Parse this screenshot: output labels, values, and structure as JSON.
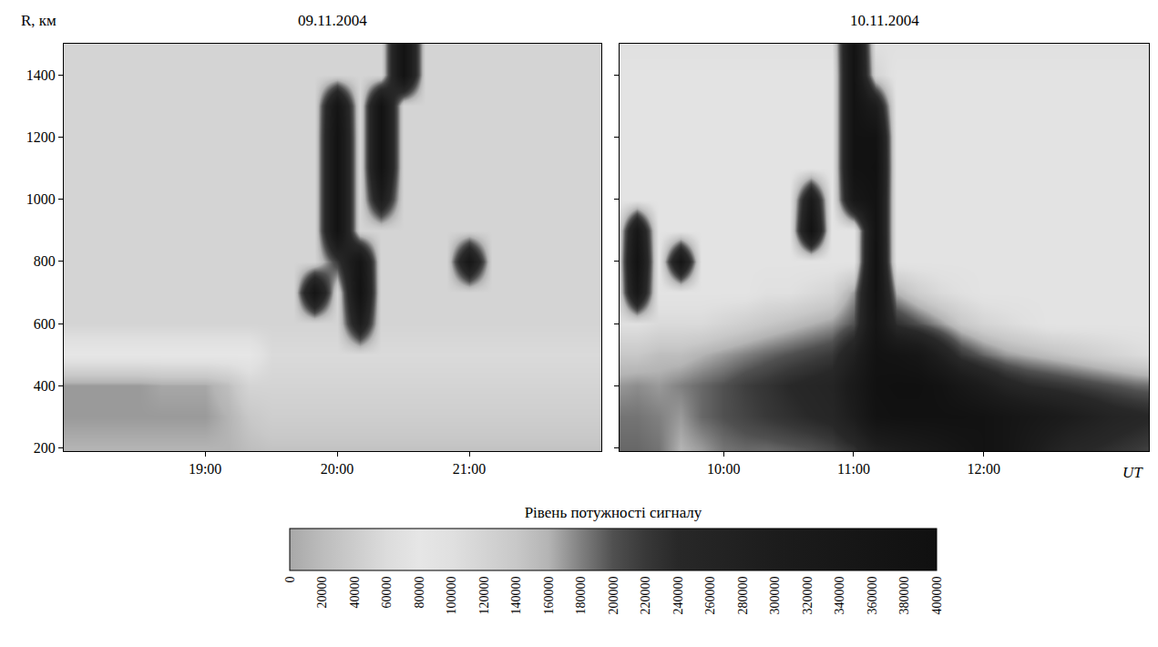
{
  "chart_data": [
    {
      "type": "heatmap",
      "title": "09.11.2004",
      "ylabel": "R, км",
      "x": [
        18,
        18.17,
        18.33,
        18.5,
        18.67,
        18.83,
        19,
        19.17,
        19.33,
        19.5,
        19.67,
        19.83,
        20,
        20.17,
        20.33,
        20.5,
        20.67,
        20.83,
        21,
        21.17,
        21.33,
        21.5,
        21.67,
        21.83,
        22
      ],
      "y": [
        200,
        300,
        400,
        500,
        600,
        700,
        800,
        900,
        1000,
        1100,
        1200,
        1300,
        1400,
        1500
      ],
      "z": [
        [
          160000,
          160000,
          160000,
          160000,
          160000,
          160000,
          160000,
          160000,
          150000,
          145000,
          145000,
          145000,
          145000,
          145000,
          145000,
          145000,
          145000,
          145000,
          145000,
          145000,
          145000,
          145000,
          145000,
          145000,
          145000
        ],
        [
          170000,
          170000,
          170000,
          170000,
          170000,
          170000,
          170000,
          160000,
          140000,
          130000,
          130000,
          130000,
          130000,
          130000,
          130000,
          130000,
          130000,
          130000,
          130000,
          130000,
          130000,
          130000,
          130000,
          130000,
          130000
        ],
        [
          170000,
          170000,
          170000,
          170000,
          165000,
          165000,
          165000,
          150000,
          120000,
          120000,
          120000,
          120000,
          120000,
          120000,
          120000,
          120000,
          120000,
          120000,
          120000,
          120000,
          120000,
          120000,
          120000,
          120000,
          120000
        ],
        [
          80000,
          80000,
          80000,
          80000,
          80000,
          80000,
          80000,
          80000,
          80000,
          110000,
          110000,
          110000,
          110000,
          110000,
          110000,
          110000,
          110000,
          110000,
          110000,
          110000,
          110000,
          110000,
          110000,
          110000,
          110000
        ],
        [
          120000,
          120000,
          120000,
          120000,
          120000,
          120000,
          120000,
          120000,
          120000,
          120000,
          120000,
          120000,
          120000,
          300000,
          120000,
          120000,
          120000,
          120000,
          120000,
          120000,
          120000,
          120000,
          120000,
          120000,
          120000
        ],
        [
          120000,
          120000,
          120000,
          120000,
          120000,
          120000,
          120000,
          120000,
          120000,
          120000,
          120000,
          360000,
          120000,
          380000,
          120000,
          120000,
          120000,
          120000,
          120000,
          120000,
          120000,
          120000,
          120000,
          120000,
          120000
        ],
        [
          120000,
          120000,
          120000,
          120000,
          120000,
          120000,
          120000,
          120000,
          120000,
          120000,
          120000,
          120000,
          220000,
          360000,
          120000,
          120000,
          120000,
          120000,
          340000,
          120000,
          120000,
          120000,
          120000,
          120000,
          120000
        ],
        [
          120000,
          120000,
          120000,
          120000,
          120000,
          120000,
          120000,
          120000,
          120000,
          120000,
          120000,
          120000,
          380000,
          120000,
          120000,
          120000,
          120000,
          120000,
          120000,
          120000,
          120000,
          120000,
          120000,
          120000,
          120000
        ],
        [
          120000,
          120000,
          120000,
          120000,
          120000,
          120000,
          120000,
          120000,
          120000,
          120000,
          120000,
          120000,
          380000,
          120000,
          300000,
          120000,
          120000,
          120000,
          120000,
          120000,
          120000,
          120000,
          120000,
          120000,
          120000
        ],
        [
          120000,
          120000,
          120000,
          120000,
          120000,
          120000,
          120000,
          120000,
          120000,
          120000,
          120000,
          120000,
          380000,
          120000,
          380000,
          120000,
          120000,
          120000,
          120000,
          120000,
          120000,
          120000,
          120000,
          120000,
          120000
        ],
        [
          120000,
          120000,
          120000,
          120000,
          120000,
          120000,
          120000,
          120000,
          120000,
          120000,
          120000,
          120000,
          380000,
          120000,
          380000,
          120000,
          120000,
          120000,
          120000,
          120000,
          120000,
          120000,
          120000,
          120000,
          120000
        ],
        [
          120000,
          120000,
          120000,
          120000,
          120000,
          120000,
          120000,
          120000,
          120000,
          120000,
          120000,
          120000,
          360000,
          120000,
          380000,
          120000,
          120000,
          120000,
          120000,
          120000,
          120000,
          120000,
          120000,
          120000,
          120000
        ],
        [
          120000,
          120000,
          120000,
          120000,
          120000,
          120000,
          120000,
          120000,
          120000,
          120000,
          120000,
          120000,
          120000,
          120000,
          120000,
          380000,
          120000,
          120000,
          120000,
          120000,
          120000,
          120000,
          120000,
          120000,
          120000
        ],
        [
          120000,
          120000,
          120000,
          120000,
          120000,
          120000,
          120000,
          120000,
          120000,
          120000,
          120000,
          120000,
          120000,
          120000,
          120000,
          380000,
          120000,
          120000,
          120000,
          120000,
          120000,
          120000,
          120000,
          120000,
          120000
        ]
      ],
      "xlim": [
        17.93,
        22.0
      ],
      "ylim": [
        190,
        1500
      ],
      "xticks": [
        {
          "value": 19,
          "label": "19:00"
        },
        {
          "value": 20,
          "label": "20:00"
        },
        {
          "value": 21,
          "label": "21:00"
        }
      ],
      "yticks": [
        200,
        400,
        600,
        800,
        1000,
        1200,
        1400
      ],
      "grid": false
    },
    {
      "type": "heatmap",
      "title": "10.11.2004",
      "xlabel": "UT",
      "x": [
        9.17,
        9.33,
        9.5,
        9.67,
        9.83,
        10,
        10.17,
        10.33,
        10.5,
        10.67,
        10.83,
        11,
        11.17,
        11.33,
        11.5,
        11.67,
        11.83,
        12,
        12.17,
        12.33,
        12.5,
        12.67,
        12.83,
        13,
        13.17,
        13.33
      ],
      "y": [
        200,
        300,
        400,
        500,
        600,
        700,
        800,
        900,
        1000,
        1100,
        1200,
        1300,
        1400,
        1500
      ],
      "z": [
        [
          190000,
          190000,
          185000,
          160000,
          170000,
          185000,
          190000,
          190000,
          195000,
          200000,
          210000,
          230000,
          280000,
          300000,
          320000,
          340000,
          360000,
          380000,
          360000,
          320000,
          280000,
          250000,
          240000,
          230000,
          220000,
          210000
        ],
        [
          185000,
          185000,
          180000,
          170000,
          190000,
          200000,
          210000,
          220000,
          230000,
          240000,
          250000,
          300000,
          380000,
          390000,
          390000,
          390000,
          390000,
          380000,
          360000,
          340000,
          320000,
          300000,
          280000,
          260000,
          250000,
          240000
        ],
        [
          170000,
          175000,
          170000,
          180000,
          190000,
          200000,
          215000,
          225000,
          240000,
          250000,
          260000,
          320000,
          390000,
          400000,
          400000,
          380000,
          340000,
          300000,
          260000,
          240000,
          230000,
          220000,
          210000,
          200000,
          190000,
          185000
        ],
        [
          140000,
          140000,
          150000,
          150000,
          160000,
          170000,
          180000,
          190000,
          200000,
          210000,
          220000,
          280000,
          380000,
          370000,
          350000,
          280000,
          220000,
          190000,
          170000,
          160000,
          150000,
          140000,
          130000,
          120000,
          110000,
          100000
        ],
        [
          100000,
          100000,
          110000,
          110000,
          110000,
          120000,
          130000,
          140000,
          150000,
          160000,
          170000,
          200000,
          360000,
          230000,
          200000,
          170000,
          140000,
          120000,
          110000,
          100000,
          90000,
          90000,
          90000,
          90000,
          90000,
          90000
        ],
        [
          90000,
          340000,
          90000,
          90000,
          90000,
          90000,
          90000,
          100000,
          100000,
          110000,
          120000,
          170000,
          380000,
          160000,
          130000,
          110000,
          100000,
          90000,
          90000,
          90000,
          90000,
          90000,
          90000,
          90000,
          90000,
          90000
        ],
        [
          90000,
          380000,
          90000,
          350000,
          90000,
          90000,
          90000,
          90000,
          90000,
          90000,
          90000,
          90000,
          390000,
          90000,
          90000,
          90000,
          90000,
          90000,
          90000,
          90000,
          90000,
          90000,
          90000,
          90000,
          90000,
          90000
        ],
        [
          90000,
          340000,
          90000,
          90000,
          90000,
          90000,
          90000,
          90000,
          90000,
          380000,
          90000,
          90000,
          380000,
          90000,
          90000,
          90000,
          90000,
          90000,
          90000,
          90000,
          90000,
          90000,
          90000,
          90000,
          90000,
          90000
        ],
        [
          90000,
          90000,
          90000,
          90000,
          90000,
          90000,
          90000,
          90000,
          90000,
          320000,
          90000,
          340000,
          380000,
          90000,
          90000,
          90000,
          90000,
          90000,
          90000,
          90000,
          90000,
          90000,
          90000,
          90000,
          90000,
          90000
        ],
        [
          90000,
          90000,
          90000,
          90000,
          90000,
          90000,
          90000,
          90000,
          90000,
          90000,
          90000,
          380000,
          390000,
          90000,
          90000,
          90000,
          90000,
          90000,
          90000,
          90000,
          90000,
          90000,
          90000,
          90000,
          90000,
          90000
        ],
        [
          90000,
          90000,
          90000,
          90000,
          90000,
          90000,
          90000,
          90000,
          90000,
          90000,
          90000,
          380000,
          380000,
          90000,
          90000,
          90000,
          90000,
          90000,
          90000,
          90000,
          90000,
          90000,
          90000,
          90000,
          90000,
          90000
        ],
        [
          90000,
          90000,
          90000,
          90000,
          90000,
          90000,
          90000,
          90000,
          90000,
          90000,
          90000,
          380000,
          300000,
          90000,
          90000,
          90000,
          90000,
          90000,
          90000,
          90000,
          90000,
          90000,
          90000,
          90000,
          90000,
          90000
        ],
        [
          90000,
          90000,
          90000,
          90000,
          90000,
          90000,
          90000,
          90000,
          90000,
          90000,
          90000,
          380000,
          120000,
          90000,
          90000,
          90000,
          90000,
          90000,
          90000,
          90000,
          90000,
          90000,
          90000,
          90000,
          90000,
          90000
        ],
        [
          100000,
          100000,
          100000,
          100000,
          100000,
          100000,
          100000,
          100000,
          100000,
          100000,
          100000,
          380000,
          100000,
          100000,
          100000,
          100000,
          100000,
          100000,
          100000,
          100000,
          100000,
          100000,
          100000,
          100000,
          100000,
          100000
        ]
      ],
      "xlim": [
        9.2,
        13.27
      ],
      "ylim": [
        190,
        1500
      ],
      "xticks": [
        {
          "value": 10,
          "label": "10:00"
        },
        {
          "value": 11,
          "label": "11:00"
        },
        {
          "value": 12,
          "label": "12:00"
        }
      ],
      "yticks": [
        200,
        400,
        600,
        800,
        1000,
        1200,
        1400
      ],
      "tick_labels": "x",
      "grid": false
    }
  ],
  "colorbar": {
    "title": "Рівень потужності сигналу",
    "zlim": [
      0,
      400000
    ],
    "ticks": [
      0,
      20000,
      40000,
      60000,
      80000,
      100000,
      120000,
      140000,
      160000,
      180000,
      200000,
      220000,
      240000,
      260000,
      280000,
      300000,
      320000,
      340000,
      360000,
      380000,
      400000
    ]
  }
}
